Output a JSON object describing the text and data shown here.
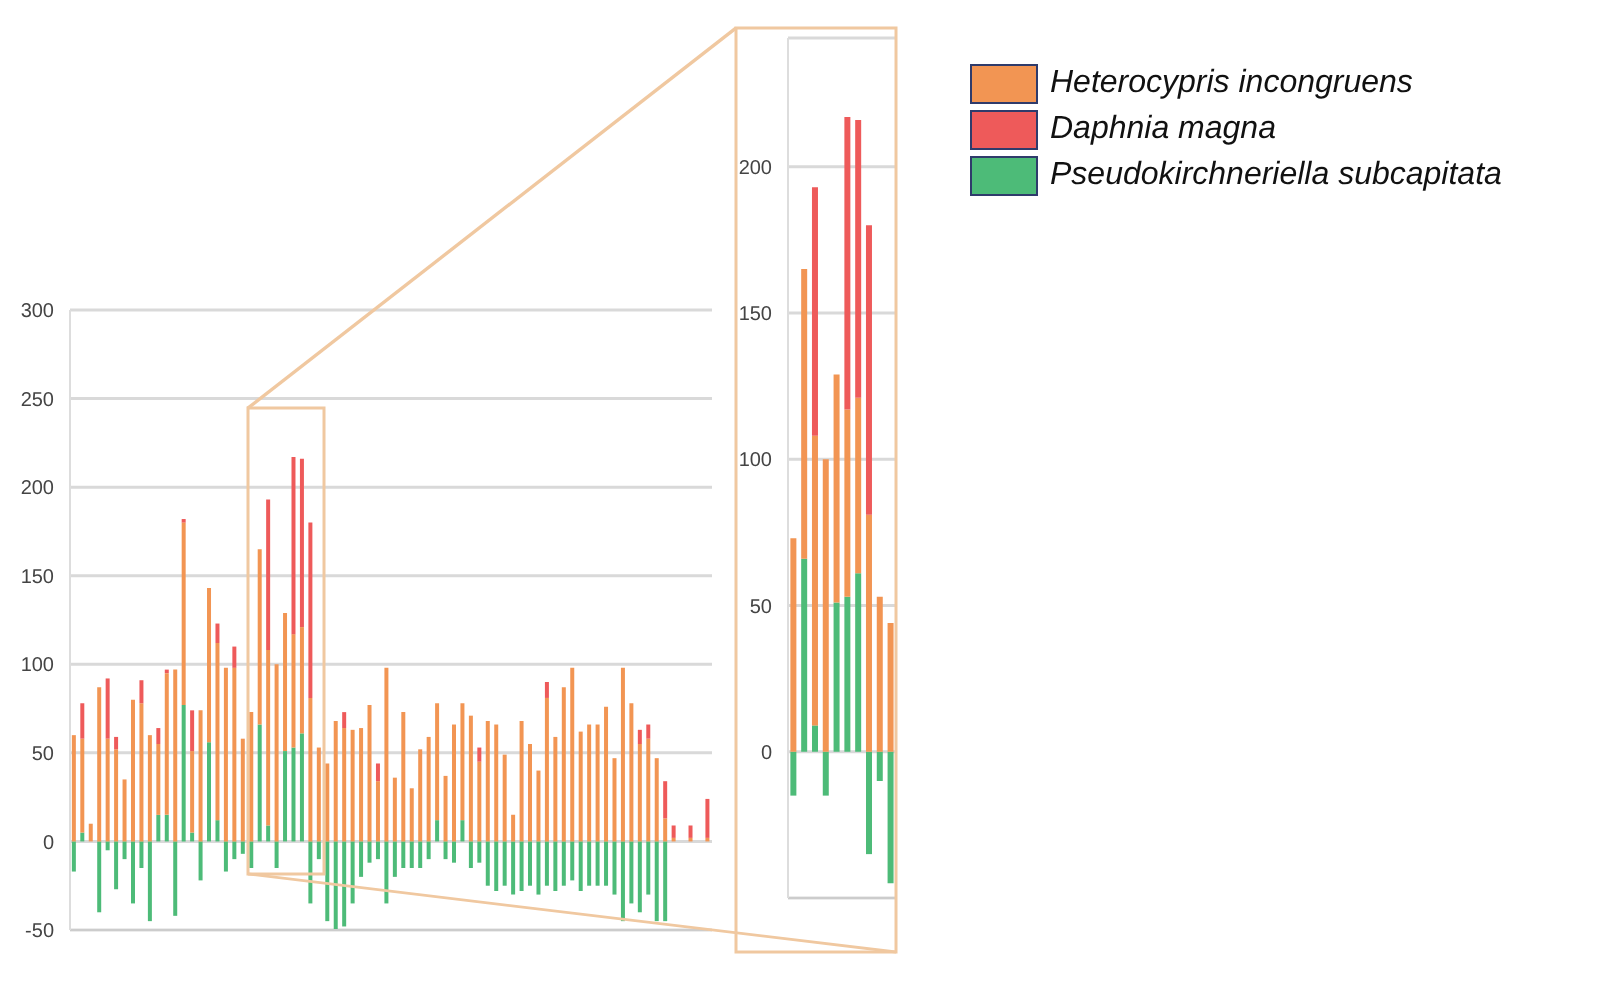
{
  "chart_data": [
    {
      "type": "bar",
      "stacked": true,
      "categories": [
        null,
        null,
        null,
        null,
        null,
        null,
        null,
        null,
        null,
        null,
        null,
        null,
        null,
        null,
        null,
        null,
        null,
        null,
        null,
        null,
        null,
        null,
        null,
        null,
        null,
        null,
        null,
        null,
        null,
        null,
        null,
        null,
        null,
        null,
        null,
        null,
        null,
        null,
        null,
        null,
        null,
        null,
        null,
        null,
        null,
        null,
        null,
        null,
        null,
        null,
        null,
        null,
        null,
        null,
        null,
        null,
        null,
        null,
        null,
        null,
        null,
        null,
        null,
        null,
        null,
        null,
        null,
        null,
        null,
        null,
        null,
        null,
        null,
        null,
        null,
        null
      ],
      "ylim": [
        -50,
        300
      ],
      "yticks": [
        -50,
        0,
        50,
        100,
        150,
        200,
        250,
        300
      ],
      "grid": "y",
      "tick_labels": "y",
      "legend": "top right",
      "series": [
        {
          "name": "Pseudokirchneriella subcapitata",
          "color": "#4dbb78",
          "values": [
            -17,
            5,
            null,
            -40,
            -5,
            -27,
            -10,
            -35,
            -15,
            -45,
            15,
            15,
            -42,
            77,
            5,
            -22,
            56,
            12,
            -17,
            -10,
            -7,
            -15,
            66,
            9,
            -15,
            51,
            53,
            61,
            -35,
            -10,
            -45,
            -50,
            -48,
            -35,
            -20,
            -12,
            -10,
            -35,
            -20,
            -15,
            -15,
            -15,
            -10,
            12,
            -10,
            -12,
            12,
            -15,
            -12,
            -25,
            -28,
            -25,
            -30,
            -28,
            -25,
            -30,
            -25,
            -28,
            -25,
            -22,
            -28,
            -25,
            -25,
            -25,
            -30,
            -45,
            -35,
            -40,
            -30,
            -45,
            -45,
            null,
            null,
            null,
            null,
            null
          ]
        },
        {
          "name": "Heterocypris incongruens",
          "color": "#f29553",
          "values": [
            60,
            53,
            10,
            87,
            58,
            52,
            35,
            80,
            78,
            60,
            40,
            80,
            97,
            103,
            46,
            74,
            87,
            100,
            98,
            98,
            58,
            73,
            99,
            99,
            100,
            78,
            64,
            60,
            81,
            53,
            44,
            68,
            64,
            63,
            64,
            77,
            34,
            98,
            36,
            73,
            30,
            52,
            59,
            66,
            37,
            66,
            66,
            71,
            45,
            68,
            66,
            49,
            15,
            68,
            55,
            40,
            81,
            59,
            87,
            98,
            62,
            66,
            66,
            76,
            47,
            98,
            78,
            55,
            58,
            47,
            13,
            2,
            null,
            2,
            null,
            2
          ]
        },
        {
          "name": "Daphnia magna",
          "color": "#ee5a5a",
          "values": [
            null,
            20,
            null,
            null,
            34,
            7,
            null,
            null,
            13,
            null,
            9,
            2,
            null,
            2,
            23,
            null,
            null,
            11,
            null,
            12,
            null,
            null,
            null,
            85,
            null,
            null,
            100,
            95,
            99,
            null,
            null,
            null,
            9,
            null,
            null,
            null,
            10,
            null,
            null,
            null,
            null,
            null,
            null,
            null,
            null,
            null,
            null,
            null,
            8,
            null,
            null,
            null,
            null,
            null,
            null,
            null,
            9,
            null,
            null,
            null,
            null,
            null,
            null,
            null,
            null,
            null,
            null,
            8,
            8,
            null,
            21,
            7,
            null,
            7,
            null,
            22
          ]
        }
      ]
    },
    {
      "type": "bar",
      "stacked": true,
      "categories": [
        null,
        null,
        null,
        null,
        null,
        null,
        null,
        null,
        null,
        null
      ],
      "ylim": [
        -50,
        244
      ],
      "yticks": [
        0,
        50,
        100,
        150,
        200
      ],
      "grid": "y",
      "tick_labels": "y",
      "series": [
        {
          "color": "#4dbb78",
          "values": [
            -15,
            66,
            9,
            -15,
            51,
            53,
            61,
            -35,
            -10,
            -45
          ]
        },
        {
          "color": "#f29553",
          "values": [
            73,
            99,
            99,
            100,
            78,
            64,
            60,
            81,
            53,
            44
          ]
        },
        {
          "color": "#ee5a5a",
          "values": [
            null,
            null,
            85,
            null,
            null,
            100,
            95,
            99,
            null,
            null
          ]
        }
      ]
    }
  ]
}
